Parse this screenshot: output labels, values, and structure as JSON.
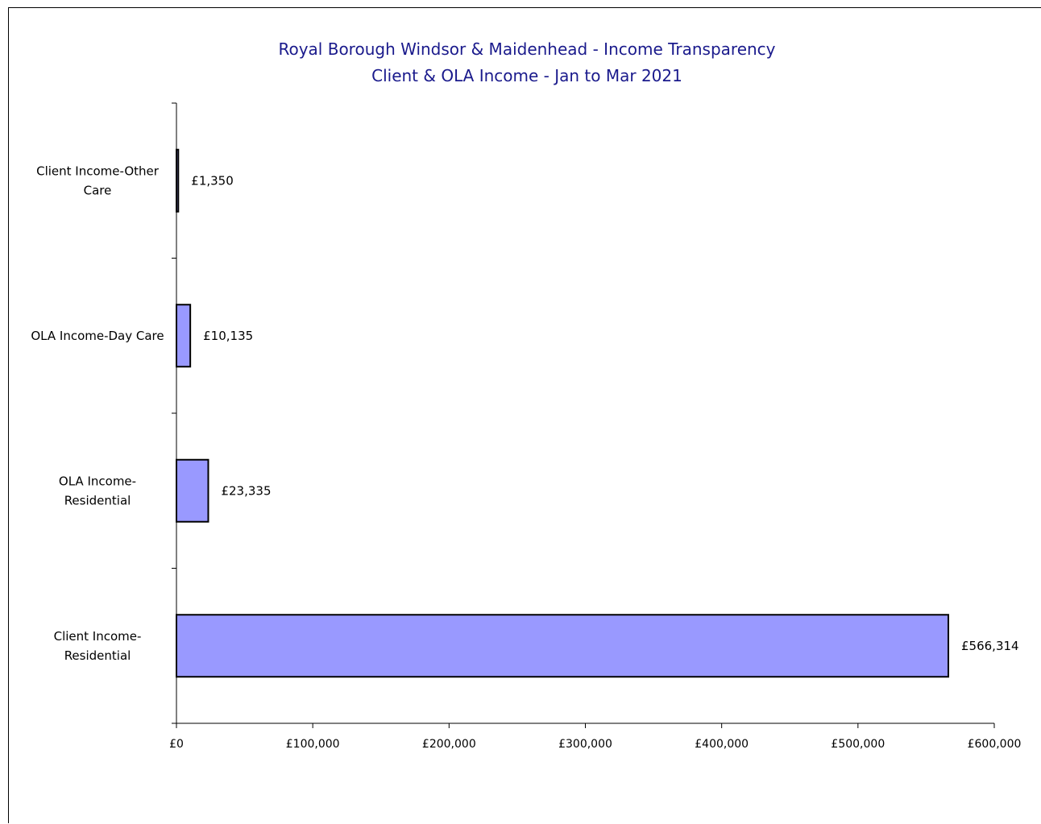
{
  "chart_data": {
    "type": "bar",
    "orientation": "horizontal",
    "title": "Royal Borough Windsor & Maidenhead - Income Transparency",
    "subtitle": "Client & OLA Income - Jan to Mar 2021",
    "categories": [
      [
        "Client Income-Other",
        "Care"
      ],
      [
        "OLA Income-Day Care"
      ],
      [
        "OLA Income-",
        "Residential"
      ],
      [
        "Client Income-",
        "Residential"
      ]
    ],
    "values": [
      1350,
      10135,
      23335,
      566314
    ],
    "data_labels": [
      "£1,350",
      "£10,135",
      "£23,335",
      "£566,314"
    ],
    "xlim": [
      0,
      600000
    ],
    "x_ticks": [
      0,
      100000,
      200000,
      300000,
      400000,
      500000,
      600000
    ],
    "x_tick_labels": [
      "£0",
      "£100,000",
      "£200,000",
      "£300,000",
      "£400,000",
      "£500,000",
      "£600,000"
    ],
    "bar_color": "#9999ff",
    "bar_outline": "#000000",
    "title_color": "#1a1a8c",
    "grid": false,
    "legend": "none"
  }
}
